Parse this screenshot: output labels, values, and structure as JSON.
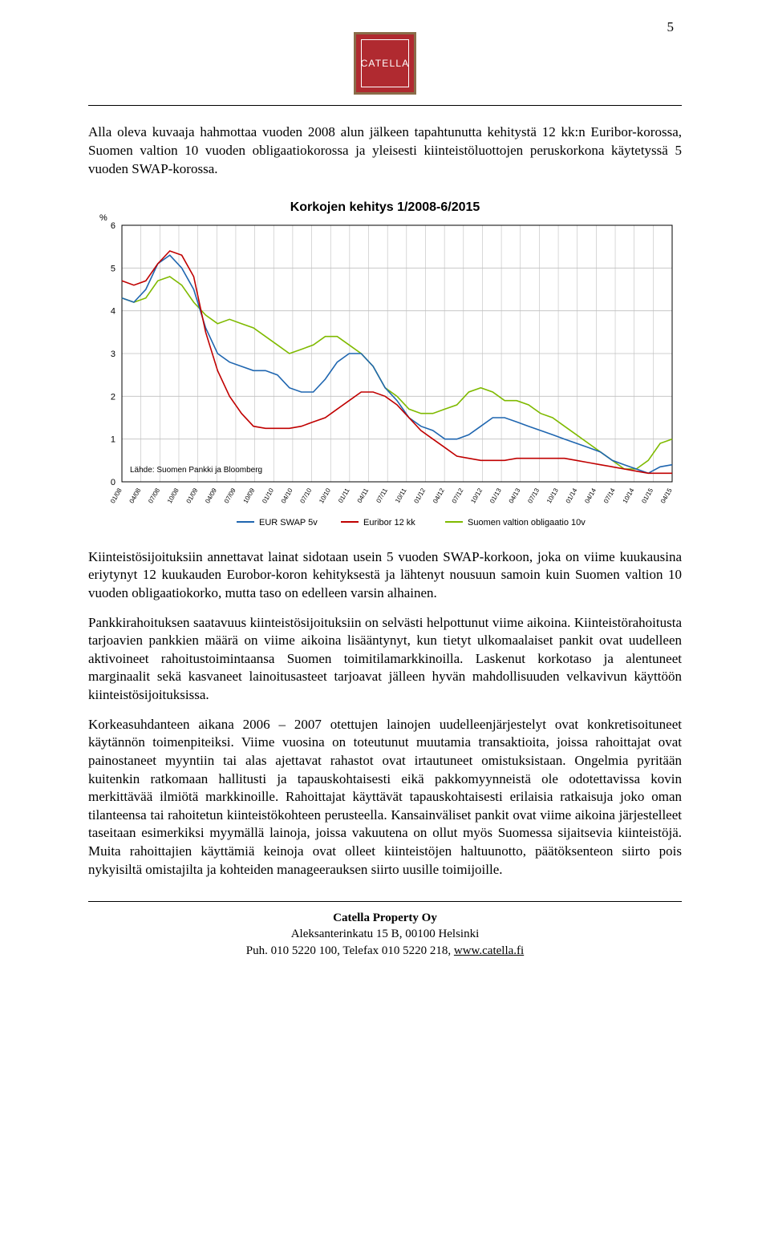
{
  "page_number": "5",
  "logo": {
    "text": "CATELLA",
    "bg": "#b02a30",
    "border": "#8a6d4a",
    "fg": "#ffffff"
  },
  "intro": "Alla oleva kuvaaja hahmottaa vuoden 2008 alun jälkeen tapahtunutta kehitystä 12 kk:n Euribor-korossa, Suomen valtion 10 vuoden obligaatiokorossa ja yleisesti kiinteistöluottojen peruskorkona käytetyssä 5 vuoden SWAP-korossa.",
  "chart": {
    "type": "line",
    "title": "Korkojen kehitys 1/2008-6/2015",
    "title_fontsize": 16,
    "title_weight": "bold",
    "y_axis_label": "%",
    "ylim": [
      0,
      6
    ],
    "ytick_step": 1,
    "background_color": "#ffffff",
    "grid_color": "#bfbfbf",
    "axis_color": "#000000",
    "source_note": "Lähde: Suomen Pankki ja Bloomberg",
    "source_fontsize": 10,
    "x_labels": [
      "01/08",
      "04/08",
      "07/08",
      "10/08",
      "01/09",
      "04/09",
      "07/09",
      "10/09",
      "01/10",
      "04/10",
      "07/10",
      "10/10",
      "01/11",
      "04/11",
      "07/11",
      "10/11",
      "01/12",
      "04/12",
      "07/12",
      "10/12",
      "01/13",
      "04/13",
      "07/13",
      "10/13",
      "01/14",
      "04/14",
      "07/14",
      "10/14",
      "01/15",
      "04/15"
    ],
    "x_label_fontsize": 8,
    "legend": {
      "items": [
        {
          "label": "EUR SWAP 5v",
          "color": "#1f66b0"
        },
        {
          "label": "Euribor 12 kk",
          "color": "#c00000"
        },
        {
          "label": "Suomen valtion obligaatio 10v",
          "color": "#7fba00"
        }
      ],
      "fontsize": 11
    },
    "series": {
      "eur_swap_5v": {
        "color": "#1f66b0",
        "line_width": 1.6,
        "values": [
          4.3,
          4.2,
          4.5,
          5.1,
          5.3,
          5.0,
          4.5,
          3.6,
          3.0,
          2.8,
          2.7,
          2.6,
          2.6,
          2.5,
          2.2,
          2.1,
          2.1,
          2.4,
          2.8,
          3.0,
          3.0,
          2.7,
          2.2,
          1.9,
          1.5,
          1.3,
          1.2,
          1.0,
          1.0,
          1.1,
          1.3,
          1.5,
          1.5,
          1.4,
          1.3,
          1.2,
          1.1,
          1.0,
          0.9,
          0.8,
          0.7,
          0.5,
          0.4,
          0.3,
          0.2,
          0.35,
          0.4
        ]
      },
      "euribor_12kk": {
        "color": "#c00000",
        "line_width": 1.6,
        "values": [
          4.7,
          4.6,
          4.7,
          5.1,
          5.4,
          5.3,
          4.8,
          3.5,
          2.6,
          2.0,
          1.6,
          1.3,
          1.25,
          1.25,
          1.25,
          1.3,
          1.4,
          1.5,
          1.7,
          1.9,
          2.1,
          2.1,
          2.0,
          1.8,
          1.5,
          1.2,
          1.0,
          0.8,
          0.6,
          0.55,
          0.5,
          0.5,
          0.5,
          0.55,
          0.55,
          0.55,
          0.55,
          0.55,
          0.5,
          0.45,
          0.4,
          0.35,
          0.3,
          0.25,
          0.2,
          0.2,
          0.2
        ]
      },
      "gov_bond_10y": {
        "color": "#7fba00",
        "line_width": 1.6,
        "values": [
          4.3,
          4.2,
          4.3,
          4.7,
          4.8,
          4.6,
          4.2,
          3.9,
          3.7,
          3.8,
          3.7,
          3.6,
          3.4,
          3.2,
          3.0,
          3.1,
          3.2,
          3.4,
          3.4,
          3.2,
          3.0,
          2.7,
          2.2,
          2.0,
          1.7,
          1.6,
          1.6,
          1.7,
          1.8,
          2.1,
          2.2,
          2.1,
          1.9,
          1.9,
          1.8,
          1.6,
          1.5,
          1.3,
          1.1,
          0.9,
          0.7,
          0.5,
          0.3,
          0.3,
          0.5,
          0.9,
          1.0
        ]
      }
    }
  },
  "paragraphs": [
    "Kiinteistösijoituksiin annettavat lainat sidotaan usein 5 vuoden SWAP-korkoon, joka on viime kuukausina eriytynyt 12 kuukauden Eurobor-koron kehityksestä ja lähtenyt nousuun samoin kuin Suomen valtion 10 vuoden obligaatiokorko, mutta taso on edelleen varsin alhainen.",
    "Pankkirahoituksen saatavuus kiinteistösijoituksiin on selvästi helpottunut viime aikoina. Kiinteistörahoitusta tarjoavien pankkien määrä on viime aikoina lisääntynyt, kun tietyt ulkomaalaiset pankit ovat uudelleen aktivoineet rahoitustoimintaansa Suomen toimitila­markkinoilla. Laskenut korkotaso ja alentuneet marginaalit sekä kasvaneet lainoitus­asteet tarjoavat jälleen hyvän mahdollisuuden velkavivun käyttöön kiinteistö­sijoituksissa.",
    "Korkeasuhdanteen aikana 2006 – 2007 otettujen lainojen uudelleenjärjestelyt ovat konkretisoituneet käytännön toimenpiteiksi. Viime vuosina on toteutunut muutamia transaktioita, joissa rahoittajat ovat painostaneet myyntiin tai alas ajettavat rahastot ovat irtautuneet omistuksistaan. Ongelmia pyritään kuitenkin ratkomaan hallitusti ja tapauskohtaisesti eikä pakkomyynneistä ole odotettavissa kovin merkittävää ilmiötä markkinoille. Rahoittajat käyttävät tapauskohtaisesti erilaisia ratkaisuja joko oman tilanteensa tai rahoitetun kiinteistökohteen perusteella. Kansainväliset pankit ovat viime aikoina järjestelleet taseitaan esimerkiksi myymällä lainoja, joissa vakuutena on ollut myös Suomessa sijaitsevia kiinteistöjä. Muita rahoittajien käyttämiä keinoja ovat olleet kiinteistöjen haltuunotto, päätöksenteon siirto pois nykyisiltä omistajilta ja kohteiden manageerauksen siirto uusille toimijoille."
  ],
  "footer": {
    "company": "Catella Property Oy",
    "address": "Aleksanterinkatu 15 B, 00100 Helsinki",
    "contact_prefix": "Puh. 010 5220 100, Telefax 010 5220 218, ",
    "url": "www.catella.fi"
  }
}
